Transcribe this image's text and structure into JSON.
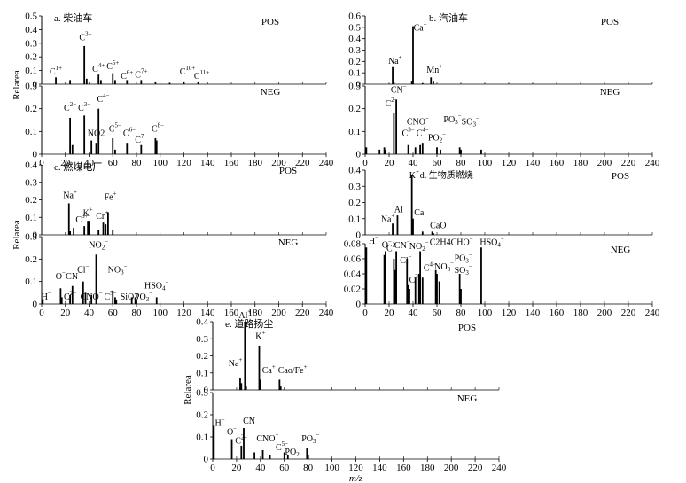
{
  "chart_data": [
    {
      "type": "bar",
      "panel": "a",
      "title": "a. 柴油车",
      "ylabel": "Relarea",
      "xlim": [
        0,
        240
      ],
      "xticks": [
        0,
        20,
        40,
        60,
        80,
        100,
        120,
        140,
        160,
        180,
        200,
        220,
        240
      ],
      "pos": {
        "tag": "POS",
        "ylim": [
          0,
          0.5
        ],
        "yticks": [
          "0",
          "0.1",
          "0.2",
          "0.3",
          "0.4",
          "0.5"
        ],
        "peaks": [
          {
            "x": 12,
            "y": 0.05
          },
          {
            "x": 24,
            "y": 0.03
          },
          {
            "x": 36,
            "y": 0.28
          },
          {
            "x": 38,
            "y": 0.04
          },
          {
            "x": 48,
            "y": 0.07
          },
          {
            "x": 50,
            "y": 0.03
          },
          {
            "x": 60,
            "y": 0.08
          },
          {
            "x": 62,
            "y": 0.03
          },
          {
            "x": 72,
            "y": 0.03
          },
          {
            "x": 84,
            "y": 0.03
          },
          {
            "x": 96,
            "y": 0.02
          },
          {
            "x": 108,
            "y": 0.01
          },
          {
            "x": 120,
            "y": 0.02
          },
          {
            "x": 132,
            "y": 0.02
          }
        ],
        "labels": [
          {
            "text": "C1+",
            "x": 12,
            "y": 0.07
          },
          {
            "text": "C3+",
            "x": 37,
            "y": 0.32
          },
          {
            "text": "C4+",
            "x": 48,
            "y": 0.09
          },
          {
            "text": "C5+",
            "x": 60,
            "y": 0.11
          },
          {
            "text": "C6+",
            "x": 72,
            "y": 0.04
          },
          {
            "text": "C7+",
            "x": 84,
            "y": 0.05
          },
          {
            "text": "C10+",
            "x": 123,
            "y": 0.07
          },
          {
            "text": "C11+",
            "x": 135,
            "y": 0.04
          }
        ]
      },
      "neg": {
        "tag": "NEG",
        "ylim": [
          0,
          0.3
        ],
        "yticks": [
          "0",
          "0.1",
          "0.2",
          "0.3"
        ],
        "peaks": [
          {
            "x": 24,
            "y": 0.16
          },
          {
            "x": 26,
            "y": 0.04
          },
          {
            "x": 36,
            "y": 0.17
          },
          {
            "x": 42,
            "y": 0.06
          },
          {
            "x": 46,
            "y": 0.05
          },
          {
            "x": 48,
            "y": 0.2
          },
          {
            "x": 60,
            "y": 0.07
          },
          {
            "x": 62,
            "y": 0.02
          },
          {
            "x": 72,
            "y": 0.05
          },
          {
            "x": 84,
            "y": 0.04
          },
          {
            "x": 96,
            "y": 0.07
          },
          {
            "x": 97,
            "y": 0.06
          }
        ],
        "labels": [
          {
            "text": "C2−",
            "x": 24,
            "y": 0.19
          },
          {
            "text": "C3−",
            "x": 36,
            "y": 0.19
          },
          {
            "text": "NO2",
            "x": 46,
            "y": 0.08
          },
          {
            "text": "C4−",
            "x": 52,
            "y": 0.23
          },
          {
            "text": "C5−",
            "x": 62,
            "y": 0.1
          },
          {
            "text": "C6−",
            "x": 74,
            "y": 0.08
          },
          {
            "text": "C7−",
            "x": 84,
            "y": 0.05
          },
          {
            "text": "C8−",
            "x": 98,
            "y": 0.1
          }
        ]
      }
    },
    {
      "type": "bar",
      "panel": "b",
      "title": "b. 汽油车",
      "ylabel": "",
      "xlim": [
        0,
        240
      ],
      "xticks": [
        0,
        20,
        40,
        60,
        80,
        100,
        120,
        140,
        160,
        180,
        200,
        220,
        240
      ],
      "pos": {
        "tag": "POS",
        "ylim": [
          0,
          0.6
        ],
        "yticks": [
          "0",
          "0.1",
          "0.2",
          "0.3",
          "0.4",
          "0.5",
          "0.6"
        ],
        "peaks": [
          {
            "x": 23,
            "y": 0.15
          },
          {
            "x": 24,
            "y": 0.02
          },
          {
            "x": 39,
            "y": 0.03
          },
          {
            "x": 40,
            "y": 0.51
          },
          {
            "x": 48,
            "y": 0.01
          },
          {
            "x": 55,
            "y": 0.06
          },
          {
            "x": 57,
            "y": 0.03
          }
        ],
        "labels": [
          {
            "text": "Na+",
            "x": 25,
            "y": 0.18
          },
          {
            "text": "Ca+",
            "x": 46,
            "y": 0.47
          },
          {
            "text": "Mn+",
            "x": 58,
            "y": 0.1
          }
        ]
      },
      "neg": {
        "tag": "NEG",
        "ylim": [
          0,
          0.3
        ],
        "yticks": [
          "0",
          "0.1",
          "0.2",
          "0.3"
        ],
        "peaks": [
          {
            "x": 1,
            "y": 0.03
          },
          {
            "x": 12,
            "y": 0.02
          },
          {
            "x": 16,
            "y": 0.03
          },
          {
            "x": 17,
            "y": 0.02
          },
          {
            "x": 24,
            "y": 0.18
          },
          {
            "x": 26,
            "y": 0.24
          },
          {
            "x": 36,
            "y": 0.04
          },
          {
            "x": 42,
            "y": 0.03
          },
          {
            "x": 46,
            "y": 0.04
          },
          {
            "x": 48,
            "y": 0.05
          },
          {
            "x": 60,
            "y": 0.03
          },
          {
            "x": 63,
            "y": 0.02
          },
          {
            "x": 79,
            "y": 0.03
          },
          {
            "x": 80,
            "y": 0.02
          },
          {
            "x": 97,
            "y": 0.02
          }
        ],
        "labels": [
          {
            "text": "C2−",
            "x": 22,
            "y": 0.21
          },
          {
            "text": "CN−",
            "x": 28,
            "y": 0.27
          },
          {
            "text": "C3−",
            "x": 36,
            "y": 0.08
          },
          {
            "text": "CNO−",
            "x": 44,
            "y": 0.13
          },
          {
            "text": "C4−",
            "x": 48,
            "y": 0.08
          },
          {
            "text": "PO2−",
            "x": 60,
            "y": 0.06
          },
          {
            "text": "PO3−",
            "x": 73,
            "y": 0.14
          },
          {
            "text": "SO3−",
            "x": 88,
            "y": 0.13
          }
        ]
      }
    },
    {
      "type": "bar",
      "panel": "c",
      "title": "c. 燃煤电厂",
      "ylabel": "Relarea",
      "xlim": [
        0,
        240
      ],
      "xticks": [
        0,
        20,
        40,
        60,
        80,
        100,
        120,
        140,
        160,
        180,
        200,
        220,
        240
      ],
      "pos": {
        "tag": "POS",
        "ylim": [
          0,
          0.4
        ],
        "yticks": [
          "0",
          "0.1",
          "0.2",
          "0.3",
          "0.4"
        ],
        "peaks": [
          {
            "x": 23,
            "y": 0.18
          },
          {
            "x": 24,
            "y": 0.02
          },
          {
            "x": 27,
            "y": 0.04
          },
          {
            "x": 36,
            "y": 0.05
          },
          {
            "x": 39,
            "y": 0.08
          },
          {
            "x": 40,
            "y": 0.08
          },
          {
            "x": 48,
            "y": 0.03
          },
          {
            "x": 52,
            "y": 0.07
          },
          {
            "x": 54,
            "y": 0.06
          },
          {
            "x": 56,
            "y": 0.13
          },
          {
            "x": 60,
            "y": 0.03
          }
        ],
        "labels": [
          {
            "text": "Na+",
            "x": 24,
            "y": 0.21
          },
          {
            "text": "C3+",
            "x": 34,
            "y": 0.07
          },
          {
            "text": "K+",
            "x": 39,
            "y": 0.11
          },
          {
            "text": "Cr+",
            "x": 51,
            "y": 0.09
          },
          {
            "text": "Fe+",
            "x": 58,
            "y": 0.2
          }
        ]
      },
      "neg": {
        "tag": "NEG",
        "ylim": [
          0,
          0.3
        ],
        "yticks": [
          "0",
          "0.1",
          "0.2",
          "0.3"
        ],
        "peaks": [
          {
            "x": 1,
            "y": 0.02
          },
          {
            "x": 16,
            "y": 0.07
          },
          {
            "x": 17,
            "y": 0.03
          },
          {
            "x": 24,
            "y": 0.04
          },
          {
            "x": 26,
            "y": 0.08
          },
          {
            "x": 35,
            "y": 0.1
          },
          {
            "x": 37,
            "y": 0.05
          },
          {
            "x": 42,
            "y": 0.04
          },
          {
            "x": 46,
            "y": 0.22
          },
          {
            "x": 60,
            "y": 0.06
          },
          {
            "x": 62,
            "y": 0.03
          },
          {
            "x": 63,
            "y": 0.02
          },
          {
            "x": 76,
            "y": 0.03
          },
          {
            "x": 79,
            "y": 0.03
          },
          {
            "x": 80,
            "y": 0.02
          },
          {
            "x": 97,
            "y": 0.03
          }
        ],
        "labels": [
          {
            "text": "H−",
            "x": 4,
            "y": 0.02
          },
          {
            "text": "O−",
            "x": 16,
            "y": 0.11
          },
          {
            "text": "C2−",
            "x": 24,
            "y": 0.02
          },
          {
            "text": "CN−",
            "x": 27,
            "y": 0.11
          },
          {
            "text": "Cl−",
            "x": 35,
            "y": 0.14
          },
          {
            "text": "CNO−",
            "x": 42,
            "y": 0.02
          },
          {
            "text": "NO2−",
            "x": 48,
            "y": 0.25
          },
          {
            "text": "C5−",
            "x": 58,
            "y": 0.02
          },
          {
            "text": "NO3−",
            "x": 64,
            "y": 0.14
          },
          {
            "text": "SiO3",
            "x": 74,
            "y": 0.02
          },
          {
            "text": "PO3−",
            "x": 86,
            "y": 0.02
          },
          {
            "text": "HSO4−",
            "x": 97,
            "y": 0.07
          }
        ]
      }
    },
    {
      "type": "bar",
      "panel": "d",
      "title": "d. 生物质燃烧",
      "ylabel": "",
      "xlim": [
        0,
        240
      ],
      "xticks": [
        0,
        20,
        40,
        60,
        80,
        100,
        120,
        140,
        160,
        180,
        200,
        220,
        240
      ],
      "pos": {
        "tag": "POS",
        "ylim": [
          0,
          0.4
        ],
        "yticks": [
          "0",
          "0.1",
          "0.2",
          "0.3",
          "0.4"
        ],
        "peaks": [
          {
            "x": 23,
            "y": 0.07
          },
          {
            "x": 27,
            "y": 0.12
          },
          {
            "x": 39,
            "y": 0.37
          },
          {
            "x": 40,
            "y": 0.1
          },
          {
            "x": 48,
            "y": 0.02
          },
          {
            "x": 56,
            "y": 0.02
          },
          {
            "x": 57,
            "y": 0.01
          }
        ],
        "labels": [
          {
            "text": "Na+",
            "x": 19,
            "y": 0.08
          },
          {
            "text": "Al",
            "x": 28,
            "y": 0.14
          },
          {
            "text": "K+",
            "x": 41,
            "y": 0.35
          },
          {
            "text": "d. 生物质燃烧",
            "x": 68,
            "y": 0.35
          },
          {
            "text": "Ca",
            "x": 45,
            "y": 0.12
          },
          {
            "text": "CaO",
            "x": 61,
            "y": 0.04
          }
        ]
      },
      "neg": {
        "tag": "NEG",
        "ylim": [
          0,
          0.08
        ],
        "yticks": [
          "0",
          "0.02",
          "0.04",
          "0.06",
          "0.08"
        ],
        "peaks": [
          {
            "x": 1,
            "y": 0.075
          },
          {
            "x": 16,
            "y": 0.065
          },
          {
            "x": 17,
            "y": 0.07
          },
          {
            "x": 24,
            "y": 0.06
          },
          {
            "x": 25,
            "y": 0.045
          },
          {
            "x": 26,
            "y": 0.07
          },
          {
            "x": 35,
            "y": 0.06
          },
          {
            "x": 36,
            "y": 0.025
          },
          {
            "x": 37,
            "y": 0.02
          },
          {
            "x": 42,
            "y": 0.035
          },
          {
            "x": 45,
            "y": 0.04
          },
          {
            "x": 46,
            "y": 0.07
          },
          {
            "x": 48,
            "y": 0.035
          },
          {
            "x": 59,
            "y": 0.045
          },
          {
            "x": 60,
            "y": 0.04
          },
          {
            "x": 62,
            "y": 0.03
          },
          {
            "x": 79,
            "y": 0.04
          },
          {
            "x": 80,
            "y": 0.02
          },
          {
            "x": 97,
            "y": 0.075
          }
        ],
        "labels": [
          {
            "text": "H−",
            "x": 7,
            "y": 0.08
          },
          {
            "text": "O−",
            "x": 18,
            "y": 0.075
          },
          {
            "text": "C2−",
            "x": 23,
            "y": 0.07
          },
          {
            "text": "CN−",
            "x": 31,
            "y": 0.074
          },
          {
            "text": "NO2−",
            "x": 45,
            "y": 0.073
          },
          {
            "text": "C2H4CHO−",
            "x": 72,
            "y": 0.078
          },
          {
            "text": "HSO4−",
            "x": 106,
            "y": 0.078
          },
          {
            "text": "Cl−",
            "x": 34,
            "y": 0.054
          },
          {
            "text": "C3−",
            "x": 42,
            "y": 0.028
          },
          {
            "text": "C4−",
            "x": 54,
            "y": 0.044
          },
          {
            "text": "NO3−",
            "x": 66,
            "y": 0.046
          },
          {
            "text": "PO3−",
            "x": 82,
            "y": 0.057
          },
          {
            "text": "SO3−",
            "x": 82,
            "y": 0.041
          }
        ]
      }
    },
    {
      "type": "bar",
      "panel": "e",
      "title": "e. 道路扬尘",
      "ylabel": "Relarea",
      "xlabel": "m/z",
      "xlim": [
        0,
        240
      ],
      "xticks": [
        0,
        20,
        40,
        60,
        80,
        100,
        120,
        140,
        160,
        180,
        200,
        220,
        240
      ],
      "pos": {
        "tag": "POS",
        "ylim": [
          0,
          0.4
        ],
        "yticks": [
          "0",
          "0.1",
          "0.2",
          "0.3",
          "0.4"
        ],
        "peaks": [
          {
            "x": 23,
            "y": 0.07
          },
          {
            "x": 24,
            "y": 0.04
          },
          {
            "x": 27,
            "y": 0.4
          },
          {
            "x": 28,
            "y": 0.02
          },
          {
            "x": 39,
            "y": 0.26
          },
          {
            "x": 40,
            "y": 0.06
          },
          {
            "x": 56,
            "y": 0.06
          },
          {
            "x": 57,
            "y": 0.02
          }
        ],
        "labels": [
          {
            "text": "Al+",
            "x": 27,
            "y": 0.42
          },
          {
            "text": "Na+",
            "x": 19,
            "y": 0.14
          },
          {
            "text": "K+",
            "x": 40,
            "y": 0.3
          },
          {
            "text": "Ca+",
            "x": 47,
            "y": 0.1
          },
          {
            "text": "Cao/Fe+",
            "x": 67,
            "y": 0.1
          }
        ]
      },
      "neg": {
        "tag": "NEG",
        "ylim": [
          0,
          0.3
        ],
        "yticks": [
          "0",
          "0.1",
          "0.2",
          "0.3"
        ],
        "peaks": [
          {
            "x": 1,
            "y": 0.15
          },
          {
            "x": 16,
            "y": 0.09
          },
          {
            "x": 24,
            "y": 0.06
          },
          {
            "x": 26,
            "y": 0.14
          },
          {
            "x": 35,
            "y": 0.03
          },
          {
            "x": 42,
            "y": 0.04
          },
          {
            "x": 48,
            "y": 0.02
          },
          {
            "x": 60,
            "y": 0.03
          },
          {
            "x": 63,
            "y": 0.02
          },
          {
            "x": 79,
            "y": 0.05
          },
          {
            "x": 80,
            "y": 0.02
          }
        ],
        "labels": [
          {
            "text": "H−",
            "x": 6,
            "y": 0.15
          },
          {
            "text": "O−",
            "x": 16,
            "y": 0.11
          },
          {
            "text": "CN−",
            "x": 32,
            "y": 0.16
          },
          {
            "text": "C2−",
            "x": 24,
            "y": 0.07
          },
          {
            "text": "CNO−",
            "x": 46,
            "y": 0.08
          },
          {
            "text": "C5−",
            "x": 58,
            "y": 0.04
          },
          {
            "text": "PO2−",
            "x": 68,
            "y": 0.02
          },
          {
            "text": "PO3−",
            "x": 82,
            "y": 0.08
          }
        ]
      }
    }
  ]
}
